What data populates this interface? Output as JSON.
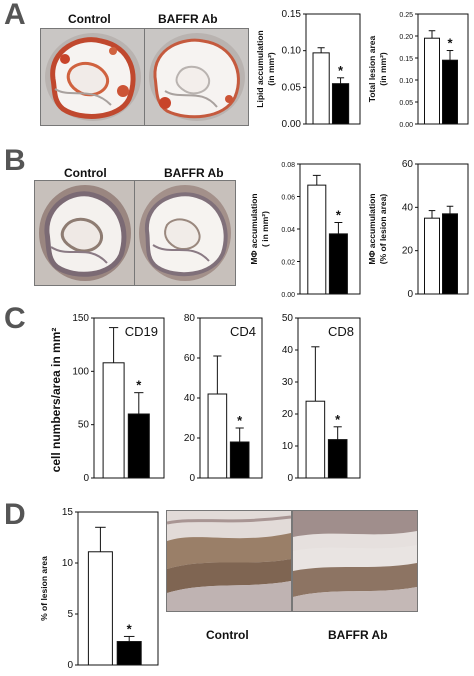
{
  "panels": {
    "A": {
      "letter": "A",
      "images": [
        {
          "label": "Control"
        },
        {
          "label": "BAFFR Ab"
        }
      ],
      "chart_data": [
        {
          "type": "bar",
          "categories": [
            "",
            ""
          ],
          "values": [
            0.097,
            0.055
          ],
          "errors": [
            0.007,
            0.008
          ],
          "ylim": [
            0,
            0.15
          ],
          "yticks": [
            "0.00",
            "0.05",
            "0.10",
            "0.15"
          ],
          "ylabel_lines": [
            "Lipid accumulation",
            "(in mm²)"
          ],
          "fills": [
            "#ffffff",
            "#000000"
          ],
          "significance": [
            "",
            "*"
          ],
          "xlabel": "",
          "title": ""
        },
        {
          "type": "bar",
          "categories": [
            "",
            ""
          ],
          "values": [
            0.195,
            0.145
          ],
          "errors": [
            0.017,
            0.022
          ],
          "ylim": [
            0,
            0.25
          ],
          "yticks": [
            "0.00",
            "0.05",
            "0.10",
            "0.15",
            "0.20",
            "0.25"
          ],
          "ylabel_lines": [
            "Total lesion area",
            "(in mm²)"
          ],
          "fills": [
            "#ffffff",
            "#000000"
          ],
          "significance": [
            "",
            "*"
          ],
          "xlabel": "",
          "title": ""
        }
      ]
    },
    "B": {
      "letter": "B",
      "images": [
        {
          "label": "Control"
        },
        {
          "label": "BAFFR Ab"
        }
      ],
      "chart_data": [
        {
          "type": "bar",
          "categories": [
            "",
            ""
          ],
          "values": [
            0.067,
            0.037
          ],
          "errors": [
            0.006,
            0.007
          ],
          "ylim": [
            0,
            0.08
          ],
          "yticks": [
            "0.00",
            "0.02",
            "0.04",
            "0.06",
            "0.08"
          ],
          "ylabel_lines": [
            "MΦ accumulation",
            "( in mm²)"
          ],
          "fills": [
            "#ffffff",
            "#000000"
          ],
          "significance": [
            "",
            "*"
          ],
          "xlabel": "",
          "title": ""
        },
        {
          "type": "bar",
          "categories": [
            "",
            ""
          ],
          "values": [
            35,
            37
          ],
          "errors": [
            3.5,
            3.5
          ],
          "ylim": [
            0,
            60
          ],
          "yticks": [
            "0",
            "20",
            "40",
            "60"
          ],
          "ylabel_lines": [
            "MΦ accumulation",
            "(% of lesion area)"
          ],
          "fills": [
            "#ffffff",
            "#000000"
          ],
          "significance": [
            "",
            ""
          ],
          "xlabel": "",
          "title": ""
        }
      ]
    },
    "C": {
      "letter": "C",
      "ylabel": "cell numbers/area in mm²",
      "chart_data": [
        {
          "type": "bar",
          "categories": [
            "",
            ""
          ],
          "values": [
            108,
            60
          ],
          "errors": [
            33,
            20
          ],
          "ylim": [
            0,
            150
          ],
          "yticks": [
            "0",
            "50",
            "100",
            "150"
          ],
          "inset_label": "CD19",
          "fills": [
            "#ffffff",
            "#000000"
          ],
          "significance": [
            "",
            "*"
          ],
          "xlabel": "",
          "title": ""
        },
        {
          "type": "bar",
          "categories": [
            "",
            ""
          ],
          "values": [
            42,
            18
          ],
          "errors": [
            19,
            7
          ],
          "ylim": [
            0,
            80
          ],
          "yticks": [
            "0",
            "20",
            "40",
            "60",
            "80"
          ],
          "inset_label": "CD4",
          "fills": [
            "#ffffff",
            "#000000"
          ],
          "significance": [
            "",
            "*"
          ],
          "xlabel": "",
          "title": ""
        },
        {
          "type": "bar",
          "categories": [
            "",
            ""
          ],
          "values": [
            24,
            12
          ],
          "errors": [
            17,
            4
          ],
          "ylim": [
            0,
            50
          ],
          "yticks": [
            "0",
            "10",
            "20",
            "30",
            "40",
            "50"
          ],
          "inset_label": "CD8",
          "fills": [
            "#ffffff",
            "#000000"
          ],
          "significance": [
            "",
            "*"
          ],
          "xlabel": "",
          "title": ""
        }
      ]
    },
    "D": {
      "letter": "D",
      "images": [
        {
          "label": "Control"
        },
        {
          "label": "BAFFR Ab"
        }
      ],
      "chart_data": [
        {
          "type": "bar",
          "categories": [
            "",
            ""
          ],
          "values": [
            11.1,
            2.3
          ],
          "errors": [
            2.4,
            0.5
          ],
          "ylim": [
            0,
            15
          ],
          "yticks": [
            "0",
            "5",
            "10",
            "15"
          ],
          "ylabel_lines": [
            "% of lesion area"
          ],
          "fills": [
            "#ffffff",
            "#000000"
          ],
          "significance": [
            "",
            "*"
          ],
          "xlabel": "",
          "title": ""
        }
      ]
    }
  }
}
